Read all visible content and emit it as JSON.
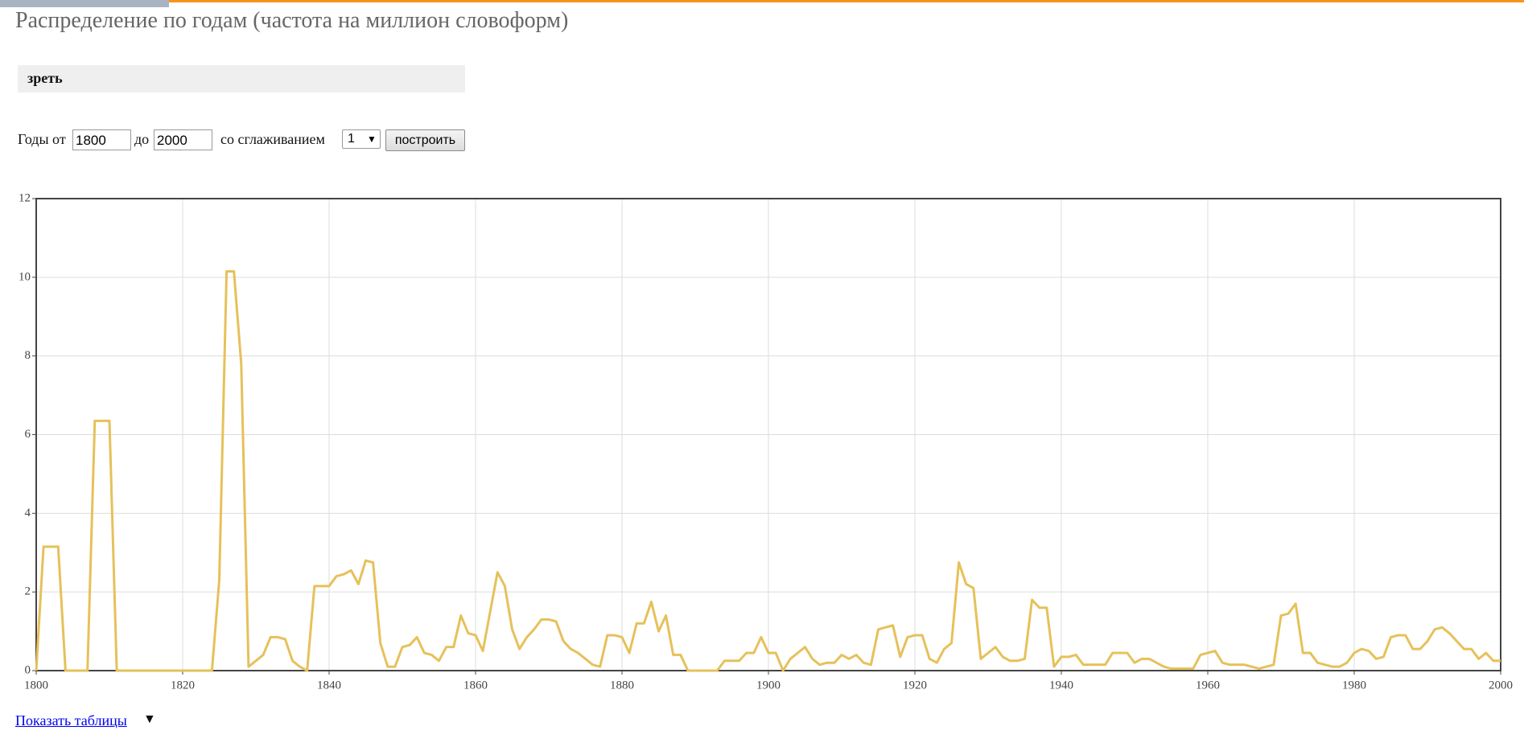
{
  "header": {
    "title": "Распределение по годам (частота на миллион словоформ)",
    "query": "зреть"
  },
  "form": {
    "from_label": "Годы от",
    "from_value": "1800",
    "to_label": "до",
    "to_value": "2000",
    "smoothing_label": "со сглаживанием",
    "smoothing_value": "1",
    "button": "построить"
  },
  "footer": {
    "link": "Показать таблицы",
    "arrow": "▼"
  },
  "chart_data": {
    "type": "line",
    "x": [
      1800,
      1801,
      1802,
      1803,
      1804,
      1805,
      1806,
      1807,
      1808,
      1809,
      1810,
      1811,
      1812,
      1813,
      1814,
      1815,
      1816,
      1817,
      1818,
      1819,
      1820,
      1821,
      1822,
      1823,
      1824,
      1825,
      1826,
      1827,
      1828,
      1829,
      1830,
      1831,
      1832,
      1833,
      1834,
      1835,
      1836,
      1837,
      1838,
      1839,
      1840,
      1841,
      1842,
      1843,
      1844,
      1845,
      1846,
      1847,
      1848,
      1849,
      1850,
      1851,
      1852,
      1853,
      1854,
      1855,
      1856,
      1857,
      1858,
      1859,
      1860,
      1861,
      1862,
      1863,
      1864,
      1865,
      1866,
      1867,
      1868,
      1869,
      1870,
      1871,
      1872,
      1873,
      1874,
      1875,
      1876,
      1877,
      1878,
      1879,
      1880,
      1881,
      1882,
      1883,
      1884,
      1885,
      1886,
      1887,
      1888,
      1889,
      1890,
      1891,
      1892,
      1893,
      1894,
      1895,
      1896,
      1897,
      1898,
      1899,
      1900,
      1901,
      1902,
      1903,
      1904,
      1905,
      1906,
      1907,
      1908,
      1909,
      1910,
      1911,
      1912,
      1913,
      1914,
      1915,
      1916,
      1917,
      1918,
      1919,
      1920,
      1921,
      1922,
      1923,
      1924,
      1925,
      1926,
      1927,
      1928,
      1929,
      1930,
      1931,
      1932,
      1933,
      1934,
      1935,
      1936,
      1937,
      1938,
      1939,
      1940,
      1941,
      1942,
      1943,
      1944,
      1945,
      1946,
      1947,
      1948,
      1949,
      1950,
      1951,
      1952,
      1953,
      1954,
      1955,
      1956,
      1957,
      1958,
      1959,
      1960,
      1961,
      1962,
      1963,
      1964,
      1965,
      1966,
      1967,
      1968,
      1969,
      1970,
      1971,
      1972,
      1973,
      1974,
      1975,
      1976,
      1977,
      1978,
      1979,
      1980,
      1981,
      1982,
      1983,
      1984,
      1985,
      1986,
      1987,
      1988,
      1989,
      1990,
      1991,
      1992,
      1993,
      1994,
      1995,
      1996,
      1997,
      1998,
      1999,
      2000
    ],
    "series": [
      {
        "color": "#e6c15a",
        "values": [
          0,
          3.15,
          3.15,
          3.15,
          0,
          0,
          0,
          0,
          6.35,
          6.35,
          6.35,
          0,
          0,
          0,
          0,
          0,
          0,
          0,
          0,
          0,
          0,
          0,
          0,
          0,
          0,
          2.3,
          10.15,
          10.15,
          7.8,
          0.1,
          0.25,
          0.4,
          0.85,
          0.85,
          0.8,
          0.25,
          0.1,
          0,
          2.15,
          2.15,
          2.15,
          2.4,
          2.45,
          2.55,
          2.2,
          2.8,
          2.75,
          0.7,
          0.1,
          0.1,
          0.6,
          0.65,
          0.85,
          0.45,
          0.4,
          0.25,
          0.6,
          0.6,
          1.4,
          0.95,
          0.9,
          0.5,
          1.5,
          2.5,
          2.15,
          1.05,
          0.55,
          0.85,
          1.05,
          1.3,
          1.3,
          1.25,
          0.75,
          0.55,
          0.45,
          0.3,
          0.15,
          0.1,
          0.9,
          0.9,
          0.85,
          0.45,
          1.2,
          1.2,
          1.75,
          1.0,
          1.4,
          0.4,
          0.4,
          0,
          0,
          0,
          0,
          0,
          0.25,
          0.25,
          0.25,
          0.45,
          0.45,
          0.85,
          0.45,
          0.45,
          0,
          0.3,
          0.45,
          0.6,
          0.3,
          0.15,
          0.2,
          0.2,
          0.4,
          0.3,
          0.4,
          0.2,
          0.15,
          1.05,
          1.1,
          1.15,
          0.35,
          0.85,
          0.9,
          0.9,
          0.3,
          0.2,
          0.55,
          0.7,
          2.75,
          2.2,
          2.1,
          0.3,
          0.45,
          0.6,
          0.35,
          0.25,
          0.25,
          0.3,
          1.8,
          1.6,
          1.6,
          0.1,
          0.35,
          0.35,
          0.4,
          0.15,
          0.15,
          0.15,
          0.15,
          0.45,
          0.45,
          0.45,
          0.2,
          0.3,
          0.3,
          0.2,
          0.1,
          0.05,
          0.05,
          0.05,
          0.05,
          0.4,
          0.45,
          0.5,
          0.2,
          0.15,
          0.15,
          0.15,
          0.1,
          0.05,
          0.1,
          0.15,
          1.4,
          1.45,
          1.7,
          0.45,
          0.45,
          0.2,
          0.15,
          0.1,
          0.1,
          0.2,
          0.45,
          0.55,
          0.5,
          0.3,
          0.35,
          0.85,
          0.9,
          0.9,
          0.55,
          0.55,
          0.75,
          1.05,
          1.1,
          0.95,
          0.75,
          0.55,
          0.55,
          0.3,
          0.45,
          0.25,
          0.25
        ]
      }
    ],
    "xlim": [
      1800,
      2000
    ],
    "xticks": [
      1800,
      1820,
      1840,
      1860,
      1880,
      1900,
      1920,
      1940,
      1960,
      1980,
      2000
    ],
    "ylim": [
      0,
      12
    ],
    "yticks": [
      0,
      2,
      4,
      6,
      8,
      10,
      12
    ],
    "grid": true
  }
}
